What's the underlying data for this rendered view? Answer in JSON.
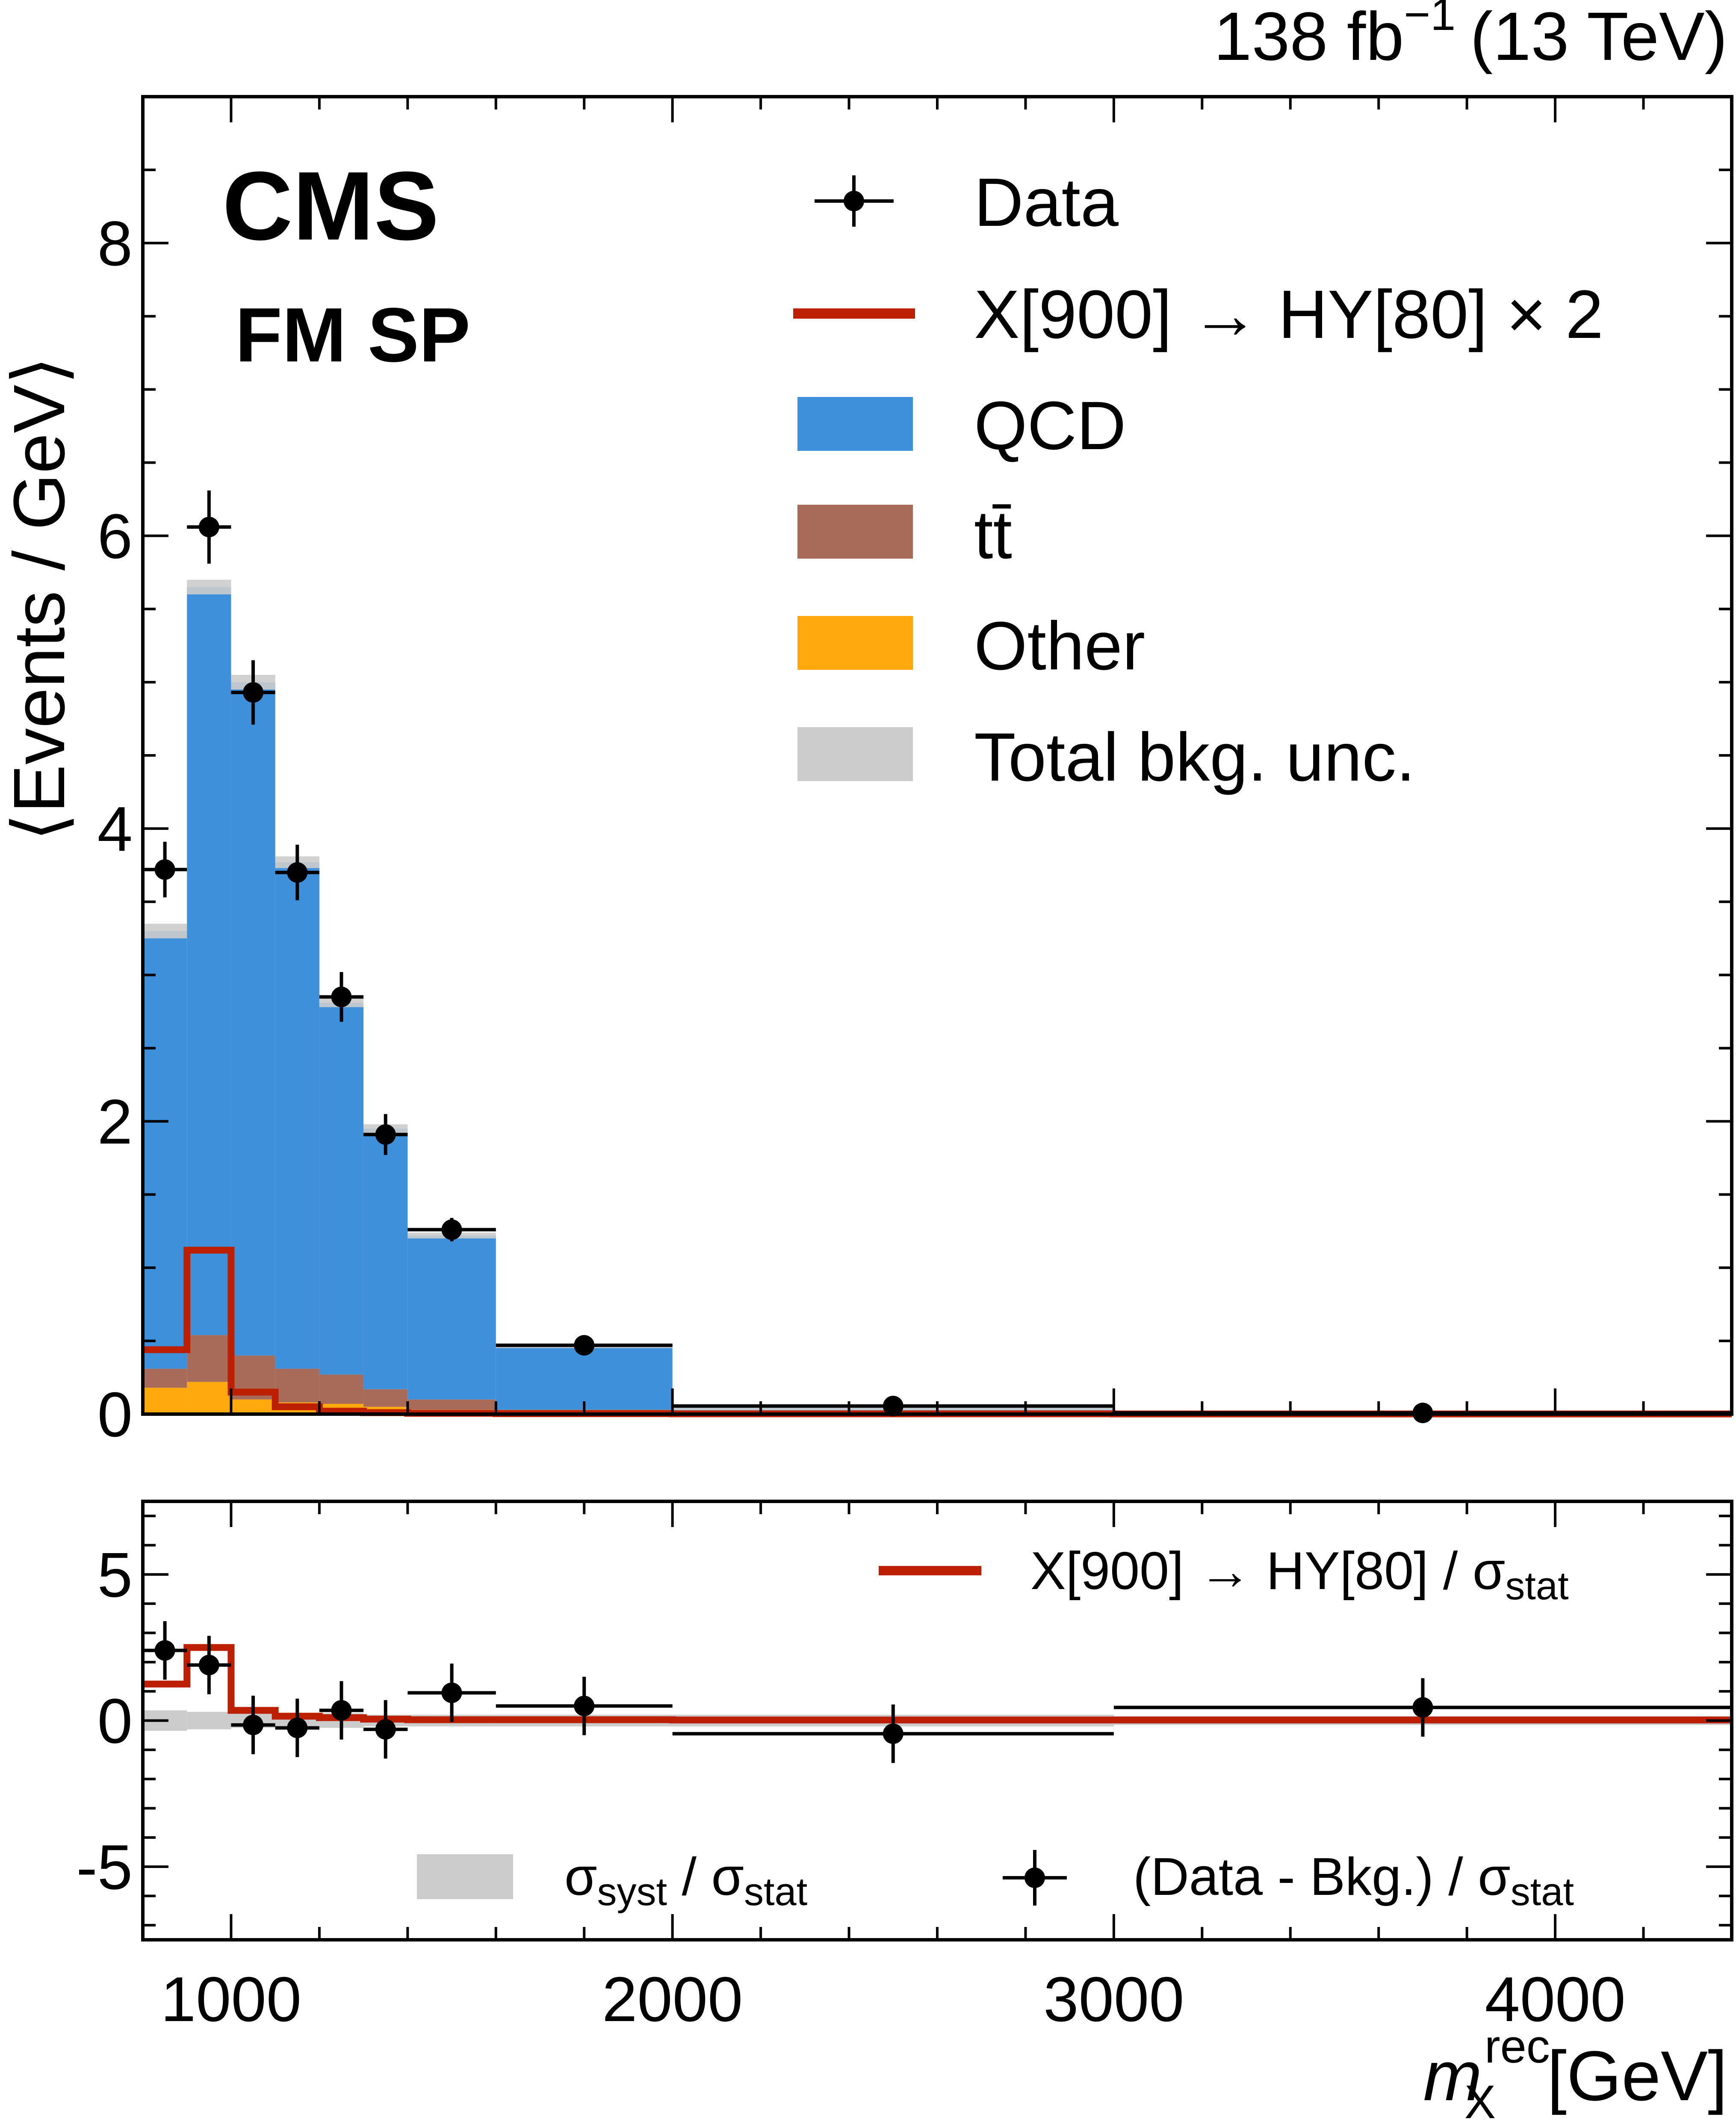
{
  "header": {
    "lumi": "138 fb",
    "lumi_exp": "−1",
    "energy": "(13 TeV)"
  },
  "labels": {
    "cms": "CMS",
    "category": "FM SP",
    "xlabel_var": "m",
    "xlabel_sup": "rec",
    "xlabel_sub": "X",
    "xlabel_unit": "[GeV]",
    "ylabel_top": "⟨Events / GeV⟩"
  },
  "colors": {
    "qcd": "#3f90da",
    "ttbar": "#a96b59",
    "other": "#ffa90e",
    "unc": "#cccccc",
    "signal": "#bd1f01",
    "data": "#000000"
  },
  "legend_top": {
    "data": "Data",
    "signal": "X[900] → HY[80] × 2",
    "qcd": "QCD",
    "ttbar": "tt̄",
    "other": "Other",
    "unc": "Total bkg. unc."
  },
  "legend_bottom": {
    "signal": "X[900] → HY[80] / σ",
    "signal_sub": "stat",
    "syst_num": "σ",
    "syst_num_sub": "syst",
    "syst_den": " / σ",
    "syst_den_sub": "stat",
    "pull": "(Data - Bkg.) / σ",
    "pull_sub": "stat"
  },
  "chart_data": [
    {
      "type": "bar",
      "stacked": true,
      "title": "",
      "xlabel": "m_X^rec [GeV]",
      "ylabel": "⟨Events / GeV⟩",
      "xlim": [
        800,
        4400
      ],
      "ylim": [
        0,
        9
      ],
      "xticks": [
        1000,
        2000,
        3000,
        4000
      ],
      "yticks": [
        0,
        2,
        4,
        6,
        8
      ],
      "ytick_labels": [
        "0",
        "2",
        "4",
        "6",
        "8"
      ],
      "bin_edges": [
        800,
        900,
        1000,
        1100,
        1200,
        1300,
        1400,
        1600,
        2000,
        3000,
        4400
      ],
      "series": [
        {
          "name": "Other",
          "values": [
            0.18,
            0.22,
            0.1,
            0.08,
            0.07,
            0.05,
            0.03,
            0.01,
            0.002,
            0.0005
          ]
        },
        {
          "name": "tt̄",
          "values": [
            0.13,
            0.32,
            0.3,
            0.23,
            0.2,
            0.12,
            0.07,
            0.02,
            0.005,
            0.001
          ]
        },
        {
          "name": "QCD",
          "values": [
            2.99,
            5.11,
            4.6,
            3.46,
            2.54,
            1.78,
            1.12,
            0.44,
            0.043,
            0.014
          ]
        }
      ],
      "total_bkg": [
        3.3,
        5.65,
        5.0,
        3.77,
        2.81,
        1.95,
        1.22,
        0.47,
        0.05,
        0.015
      ],
      "total_bkg_unc": [
        0.05,
        0.05,
        0.05,
        0.04,
        0.03,
        0.03,
        0.02,
        0.01,
        0.005,
        0.002
      ],
      "signal": {
        "name": "X[900] → HY[80] × 2",
        "values": [
          0.44,
          1.12,
          0.15,
          0.05,
          0.02,
          0.01,
          0.005,
          0.003,
          0.002,
          0.001
        ]
      },
      "data": {
        "name": "Data",
        "x": [
          850,
          950,
          1050,
          1150,
          1250,
          1350,
          1500,
          1800,
          2500,
          3700
        ],
        "y": [
          3.72,
          6.06,
          4.93,
          3.7,
          2.85,
          1.91,
          1.26,
          0.47,
          0.055,
          0.008
        ],
        "yerr": [
          0.19,
          0.25,
          0.22,
          0.19,
          0.17,
          0.14,
          0.08,
          0.035,
          0.008,
          0.0025
        ]
      }
    },
    {
      "type": "bar",
      "title": "",
      "xlabel": "m_X^rec [GeV]",
      "ylabel": "",
      "xlim": [
        800,
        4400
      ],
      "ylim": [
        -7.5,
        7.5
      ],
      "xticks": [
        1000,
        2000,
        3000,
        4000
      ],
      "xtick_labels": [
        "1000",
        "2000",
        "3000",
        "4000"
      ],
      "yticks": [
        -5,
        0,
        5
      ],
      "ytick_labels": [
        "-5",
        "0",
        "5"
      ],
      "bin_edges": [
        800,
        900,
        1000,
        1100,
        1200,
        1300,
        1400,
        1600,
        2000,
        3000,
        4400
      ],
      "syst_over_stat": [
        0.35,
        0.3,
        0.25,
        0.25,
        0.25,
        0.2,
        0.2,
        0.2,
        0.2,
        0.15
      ],
      "signal_over_stat": [
        1.25,
        2.5,
        0.35,
        0.15,
        0.1,
        0.05,
        0.03,
        0.03,
        0.02,
        0.02
      ],
      "pull": {
        "x": [
          850,
          950,
          1050,
          1150,
          1250,
          1350,
          1500,
          1800,
          2500,
          3700
        ],
        "y": [
          2.4,
          1.9,
          -0.15,
          -0.25,
          0.35,
          -0.3,
          0.95,
          0.5,
          -0.45,
          0.45
        ],
        "yerr": [
          1.0,
          1.0,
          1.0,
          1.0,
          1.0,
          1.0,
          1.0,
          1.0,
          1.0,
          1.0
        ]
      }
    }
  ]
}
